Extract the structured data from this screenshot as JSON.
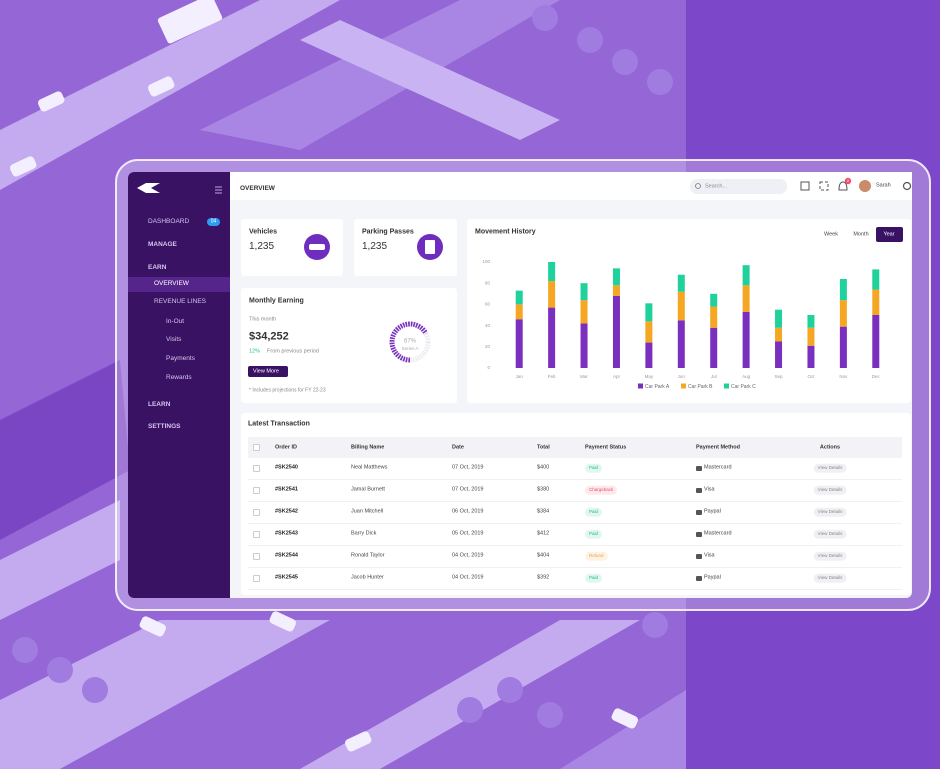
{
  "header": {
    "title": "OVERVIEW",
    "search_placeholder": "Search...",
    "notifications": "2",
    "user": "Sarah"
  },
  "sidebar": {
    "dashboard": {
      "label": "DASHBOARD",
      "badge": "04"
    },
    "manage": "MANAGE",
    "earn": {
      "label": "EARN",
      "items": [
        "OVERVIEW",
        "REVENUE LINES"
      ],
      "revenue_items": [
        "In-Out",
        "Visits",
        "Payments",
        "Rewards"
      ]
    },
    "learn": "LEARN",
    "settings": "SETTINGS"
  },
  "cards": [
    {
      "title": "Vehicles",
      "value": "1,235"
    },
    {
      "title": "Parking Passes",
      "value": "1,235"
    }
  ],
  "earning": {
    "title": "Monthly Earning",
    "period": "This month",
    "amount": "$34,252",
    "change": "12%",
    "change_text": "From previous period",
    "button": "View More",
    "note": "* Includes projections for FY 22-23"
  },
  "movement": {
    "ranges": [
      "Week",
      "Month",
      "Year"
    ],
    "active_range": 2
  },
  "chart_data": [
    {
      "type": "bar",
      "stacked": true,
      "title": "Movement History",
      "categories": [
        "Jan",
        "Feb",
        "Mar",
        "Apr",
        "May",
        "Jun",
        "Jul",
        "Aug",
        "Sep",
        "Oct",
        "Nov",
        "Dec"
      ],
      "series": [
        {
          "name": "Car Park A",
          "color": "#7b2fbe",
          "values": [
            46,
            57,
            42,
            68,
            24,
            45,
            38,
            53,
            25,
            21,
            39,
            50
          ]
        },
        {
          "name": "Car Park B",
          "color": "#f5a623",
          "values": [
            14,
            25,
            22,
            10,
            20,
            27,
            20,
            25,
            13,
            17,
            25,
            24
          ]
        },
        {
          "name": "Car Park C",
          "color": "#1fd19b",
          "values": [
            13,
            18,
            16,
            16,
            17,
            16,
            12,
            19,
            17,
            12,
            20,
            19
          ]
        }
      ],
      "ylim": [
        0,
        100
      ],
      "yticks": [
        0,
        20,
        40,
        60,
        80,
        100
      ],
      "grid": false,
      "legend": "bottom"
    },
    {
      "type": "radialBar",
      "categories": [
        "Series A"
      ],
      "values": [
        67
      ],
      "value_labels": [
        "67%"
      ],
      "ylim": [
        0,
        100
      ],
      "color": "#7b2fbe"
    }
  ],
  "table": {
    "title": "Latest Transaction",
    "columns": [
      "Order ID",
      "Billing Name",
      "Date",
      "Total",
      "Payment Status",
      "Payment Method",
      "Actions"
    ],
    "rows": [
      [
        "#SK2540",
        "Neal Matthews",
        "07 Oct, 2019",
        "$400",
        "Paid",
        "Mastercard",
        "View Details"
      ],
      [
        "#SK2541",
        "Jamal Burnett",
        "07 Oct, 2019",
        "$380",
        "Chargeback",
        "Visa",
        "View Details"
      ],
      [
        "#SK2542",
        "Juan Mitchell",
        "06 Oct, 2019",
        "$384",
        "Paid",
        "Paypal",
        "View Details"
      ],
      [
        "#SK2543",
        "Barry Dick",
        "05 Oct, 2019",
        "$412",
        "Paid",
        "Mastercard",
        "View Details"
      ],
      [
        "#SK2544",
        "Ronald Taylor",
        "04 Oct, 2019",
        "$404",
        "Refund",
        "Visa",
        "View Details"
      ],
      [
        "#SK2545",
        "Jacob Hunter",
        "04 Oct, 2019",
        "$392",
        "Paid",
        "Paypal",
        "View Details"
      ]
    ],
    "status_colors": [
      "#1dbf8f",
      "#f0506e",
      "#1dbf8f",
      "#1dbf8f",
      "#f1a33b",
      "#1dbf8f"
    ]
  }
}
